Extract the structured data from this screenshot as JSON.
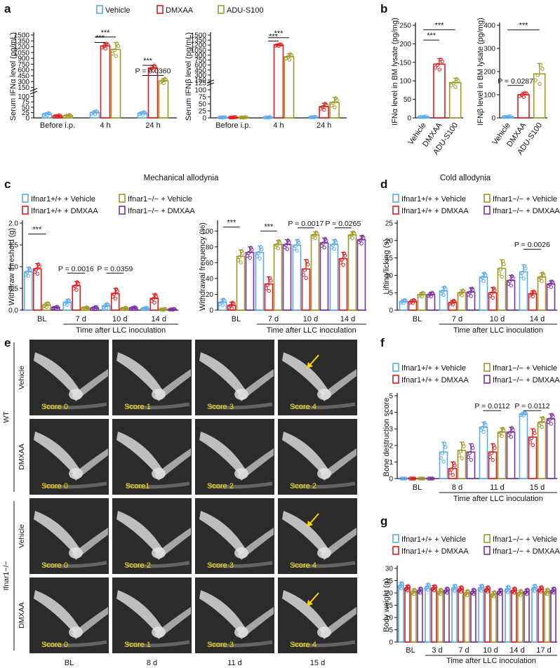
{
  "colors": {
    "vehicle": "#5aaaf0",
    "dmxaa": "#e31a1c",
    "adu": "#9c9a24",
    "ko_vehicle": "#9c9a24",
    "ko_dmxaa": "#7b2ea0",
    "arrow": "#ffd400"
  },
  "panel_labels": [
    "a",
    "b",
    "c",
    "d",
    "e",
    "f",
    "g"
  ],
  "legend_a": [
    "Vehicle",
    "DMXAA",
    "ADU-S100"
  ],
  "legend_c": [
    "Ifnar1+/+ + Vehicle",
    "Ifnar1−/− + Vehicle",
    "Ifnar1+/+ + DMXAA",
    "Ifnar1−/− + DMXAA"
  ],
  "section_titles": {
    "c": "Mechanical allodynia",
    "d": "Cold allodynia"
  },
  "xray": {
    "columns": [
      "BL",
      "8 d",
      "11 d",
      "15 d"
    ],
    "xlabel": "Time after LLC inoculation",
    "group_labels": [
      "WT",
      "Ifnar1−/−"
    ],
    "row_labels": [
      "Vehicle",
      "DMXAA",
      "Vehicle",
      "DMXAA"
    ],
    "scores": [
      [
        "Score 0",
        "Score 1",
        "Score 3",
        "Score 4"
      ],
      [
        "Score 0",
        "Score1",
        "Score 2",
        "Score 2"
      ],
      [
        "Score 0",
        "Score 2",
        "Score 3",
        "Score 4"
      ],
      [
        "Score 0",
        "Score 1",
        "Score 3",
        "Score 4"
      ]
    ],
    "arrow_cells": [
      [
        0,
        3
      ],
      [
        2,
        3
      ],
      [
        3,
        3
      ]
    ]
  },
  "chart_data": [
    {
      "id": "a1",
      "type": "bar",
      "ylabel": "Serum IFNα level (pg/mL)",
      "categories": [
        "Before i.p.",
        "4 h",
        "24 h"
      ],
      "yticks": [
        "0",
        "25",
        "50",
        "75",
        "100",
        "150",
        "300",
        "450",
        "600",
        "750",
        "900",
        "1050",
        "1200",
        "1350",
        "1500"
      ],
      "axis_break": {
        "lower": [
          0,
          125
        ],
        "upper": [
          125,
          1500
        ]
      },
      "series": [
        {
          "name": "Vehicle",
          "values": [
            18,
            25,
            22
          ],
          "errors": [
            6,
            8,
            6
          ]
        },
        {
          "name": "DMXAA",
          "values": [
            9,
            1220,
            650
          ],
          "errors": [
            4,
            70,
            70
          ]
        },
        {
          "name": "ADU-S100",
          "values": [
            10,
            1130,
            320
          ],
          "errors": [
            5,
            180,
            60
          ]
        }
      ],
      "annotations": [
        {
          "text": "***",
          "category": "4 h",
          "pair": [
            "Vehicle",
            "ADU-S100"
          ],
          "level": 1450
        },
        {
          "text": "***",
          "category": "4 h",
          "pair": [
            "Vehicle",
            "DMXAA"
          ],
          "level": 1310
        },
        {
          "text": "P = 0.0360",
          "category": "24 h",
          "pair": [
            "Vehicle",
            "ADU-S100"
          ],
          "level": 460
        },
        {
          "text": "***",
          "category": "24 h",
          "pair": [
            "Vehicle",
            "DMXAA"
          ],
          "level": 720
        }
      ]
    },
    {
      "id": "a2",
      "type": "bar",
      "ylabel": "Serum IFNβ level (pg/mL)",
      "categories": [
        "Before i.p.",
        "4 h",
        "24 h"
      ],
      "yticks": [
        "0",
        "25",
        "50",
        "75",
        "100",
        "125",
        "150",
        "300",
        "450",
        "600",
        "750",
        "900",
        "1050",
        "1200",
        "1350",
        "1500"
      ],
      "axis_break": {
        "lower": [
          0,
          125
        ],
        "upper": [
          150,
          1500
        ]
      },
      "series": [
        {
          "name": "Vehicle",
          "values": [
            2,
            2,
            3
          ],
          "errors": [
            1,
            1,
            1
          ]
        },
        {
          "name": "DMXAA",
          "values": [
            2,
            1200,
            40
          ],
          "errors": [
            1,
            30,
            12
          ]
        },
        {
          "name": "ADU-S100",
          "values": [
            2,
            850,
            55
          ],
          "errors": [
            1,
            90,
            18
          ]
        }
      ],
      "annotations": [
        {
          "text": "***",
          "category": "4 h",
          "pair": [
            "Vehicle",
            "ADU-S100"
          ],
          "level": 1420
        },
        {
          "text": "***",
          "category": "4 h",
          "pair": [
            "Vehicle",
            "DMXAA"
          ],
          "level": 1320
        }
      ]
    },
    {
      "id": "b1",
      "type": "bar",
      "ylabel": "IFNα level  in BM lysate (pg/mg)",
      "categories": [
        "Vehicle",
        "DMXAA",
        "ADU-S100"
      ],
      "yticks": [
        "0",
        "50",
        "100",
        "150",
        "200",
        "250"
      ],
      "ylim": [
        0,
        250
      ],
      "series": [
        {
          "name": "",
          "values": [
            3,
            145,
            95
          ],
          "errors": [
            1,
            15,
            12
          ]
        }
      ],
      "annotations": [
        {
          "text": "***",
          "pair": [
            "Vehicle",
            "ADU-S100"
          ],
          "level": 238
        },
        {
          "text": "***",
          "pair": [
            "Vehicle",
            "DMXAA"
          ],
          "level": 210
        }
      ]
    },
    {
      "id": "b2",
      "type": "bar",
      "ylabel": "IFNβ level  in BM lysate (pg/mg)",
      "categories": [
        "Vehicle",
        "DMXAA",
        "ADU-S100"
      ],
      "yticks": [
        "0",
        "100",
        "200",
        "300",
        "400"
      ],
      "ylim": [
        0,
        400
      ],
      "series": [
        {
          "name": "",
          "values": [
            5,
            100,
            190
          ],
          "errors": [
            2,
            10,
            45
          ]
        }
      ],
      "annotations": [
        {
          "text": "***",
          "pair": [
            "Vehicle",
            "ADU-S100"
          ],
          "level": 380
        },
        {
          "text": "P = 0.0287",
          "pair": [
            "Vehicle",
            "DMXAA"
          ],
          "level": 140
        }
      ]
    },
    {
      "id": "c1",
      "type": "bar",
      "ylabel": "Withdraw threshold (g)",
      "xlabel": "Time after LLC inoculation",
      "categories": [
        "BL",
        "7 d",
        "10 d",
        "14 d"
      ],
      "yticks": [
        "0.0",
        "0.5",
        "1.0",
        "1.5",
        "2.0"
      ],
      "ylim": [
        0,
        2.0
      ],
      "series": [
        {
          "name": "Ifnar1+/+ + Vehicle",
          "values": [
            0.88,
            0.18,
            0.1,
            0.04
          ],
          "errors": [
            0.1,
            0.06,
            0.05,
            0.02
          ]
        },
        {
          "name": "Ifnar1+/+ + DMXAA",
          "values": [
            0.95,
            0.56,
            0.38,
            0.27
          ],
          "errors": [
            0.12,
            0.1,
            0.12,
            0.1
          ]
        },
        {
          "name": "Ifnar1−/− + Vehicle",
          "values": [
            0.12,
            0.05,
            0.04,
            0.02
          ],
          "errors": [
            0.05,
            0.02,
            0.02,
            0.01
          ]
        },
        {
          "name": "Ifnar1−/− + DMXAA",
          "values": [
            0.06,
            0.05,
            0.05,
            0.02
          ],
          "errors": [
            0.02,
            0.03,
            0.02,
            0.01
          ]
        }
      ],
      "annotations": [
        {
          "text": "***",
          "category": "BL",
          "level": 1.75
        },
        {
          "text": "P = 0.0016",
          "category": "7 d",
          "level": 0.85
        },
        {
          "text": "P = 0.0359",
          "category": "10 d",
          "level": 0.85
        }
      ]
    },
    {
      "id": "c2",
      "type": "bar",
      "ylabel": "Withdrawal frequency (%)",
      "xlabel": "Time after LLC inoculation",
      "categories": [
        "BL",
        "7 d",
        "10 d",
        "14 d"
      ],
      "yticks": [
        "0",
        "20",
        "40",
        "60",
        "80",
        "100"
      ],
      "ylim": [
        0,
        110
      ],
      "series": [
        {
          "name": "Ifnar1+/+ + Vehicle",
          "values": [
            10,
            73,
            82,
            83
          ],
          "errors": [
            4,
            8,
            7,
            6
          ]
        },
        {
          "name": "Ifnar1+/+ + DMXAA",
          "values": [
            6,
            33,
            52,
            65
          ],
          "errors": [
            4,
            9,
            12,
            8
          ]
        },
        {
          "name": "Ifnar1−/− + Vehicle",
          "values": [
            68,
            83,
            95,
            95
          ],
          "errors": [
            8,
            5,
            4,
            4
          ]
        },
        {
          "name": "Ifnar1−/− + DMXAA",
          "values": [
            73,
            83,
            85,
            89
          ],
          "errors": [
            7,
            6,
            6,
            5
          ]
        }
      ],
      "annotations": [
        {
          "text": "***",
          "category": "BL",
          "level": 105
        },
        {
          "text": "***",
          "category": "7 d",
          "level": 100
        },
        {
          "text": "P = 0.0017",
          "category": "10 d",
          "level": 104
        },
        {
          "text": "P = 0.0265",
          "category": "14 d",
          "level": 104
        }
      ]
    },
    {
      "id": "d",
      "type": "bar",
      "ylabel": "Lifting/licking (s)",
      "xlabel": "Time after LLC inoculation",
      "categories": [
        "BL",
        "7 d",
        "10 d",
        "14 d"
      ],
      "yticks": [
        "0",
        "5",
        "10",
        "15",
        "20",
        "25"
      ],
      "ylim": [
        0,
        25
      ],
      "series": [
        {
          "name": "Ifnar1+/+ + Vehicle",
          "values": [
            2.5,
            5.5,
            9.5,
            11
          ],
          "errors": [
            0.5,
            1.2,
            1.2,
            2
          ]
        },
        {
          "name": "Ifnar1+/+ + DMXAA",
          "values": [
            2.5,
            2.2,
            5,
            4.7
          ],
          "errors": [
            0.5,
            0.6,
            1.5,
            0.8
          ]
        },
        {
          "name": "Ifnar1−/− + Vehicle",
          "values": [
            4.5,
            5,
            12,
            9.5
          ],
          "errors": [
            0.6,
            0.8,
            2.5,
            1.2
          ]
        },
        {
          "name": "Ifnar1−/− + DMXAA",
          "values": [
            4.5,
            5.2,
            8.5,
            7.5
          ],
          "errors": [
            0.6,
            1.2,
            1.5,
            0.9
          ]
        }
      ],
      "annotations": [
        {
          "text": "P = 0.0026",
          "category": "14 d",
          "level": 17.5
        }
      ]
    },
    {
      "id": "f",
      "type": "bar",
      "ylabel": "Bone destruction score",
      "xlabel": "Time after LLC inoculation",
      "categories": [
        "BL",
        "8 d",
        "11 d",
        "15 d"
      ],
      "yticks": [
        "0",
        "1",
        "2",
        "3",
        "4",
        "5"
      ],
      "ylim": [
        0,
        5
      ],
      "series": [
        {
          "name": "Ifnar1+/+ + Vehicle",
          "values": [
            0,
            1.6,
            3.1,
            3.9
          ],
          "errors": [
            0,
            0.6,
            0.3,
            0.1
          ]
        },
        {
          "name": "Ifnar1+/+ + DMXAA",
          "values": [
            0,
            0.6,
            1.6,
            2.5
          ],
          "errors": [
            0,
            0.4,
            0.5,
            0.5
          ]
        },
        {
          "name": "Ifnar1−/− + Vehicle",
          "values": [
            0,
            1.7,
            2.8,
            3.4
          ],
          "errors": [
            0,
            0.5,
            0.25,
            0.3
          ]
        },
        {
          "name": "Ifnar1−/− + DMXAA",
          "values": [
            0,
            1.6,
            2.8,
            3.6
          ],
          "errors": [
            0,
            0.5,
            0.3,
            0.3
          ]
        }
      ],
      "annotations": [
        {
          "text": "P = 0.0112",
          "category": "11 d",
          "level": 4.1
        },
        {
          "text": "P = 0.0112",
          "category": "15 d",
          "level": 4.1
        }
      ]
    },
    {
      "id": "g",
      "type": "bar",
      "ylabel": "Body weight (g)",
      "xlabel": "Time after LLC inoculation",
      "categories": [
        "BL",
        "3 d",
        "7 d",
        "10 d",
        "14 d",
        "17 d"
      ],
      "yticks": [
        "0",
        "5",
        "10",
        "15",
        "20",
        "25",
        "30"
      ],
      "ylim": [
        0,
        30
      ],
      "series": [
        {
          "name": "Ifnar1+/+ + Vehicle",
          "values": [
            23,
            22.5,
            22,
            22,
            21.5,
            22
          ],
          "errors": [
            1.2,
            1.2,
            1.2,
            1.2,
            1.2,
            1.2
          ]
        },
        {
          "name": "Ifnar1+/+ + DMXAA",
          "values": [
            22,
            22,
            21.5,
            21.5,
            21,
            21.5
          ],
          "errors": [
            1,
            1,
            1,
            1,
            1,
            1
          ]
        },
        {
          "name": "Ifnar1−/− + Vehicle",
          "values": [
            20.5,
            20.5,
            20,
            19.5,
            20,
            20.5
          ],
          "errors": [
            1,
            1,
            1,
            1,
            1,
            1
          ]
        },
        {
          "name": "Ifnar1−/− + DMXAA",
          "values": [
            21,
            21,
            20.5,
            20.5,
            20.5,
            21
          ],
          "errors": [
            1,
            1,
            1,
            1,
            1,
            1
          ]
        }
      ],
      "annotations": []
    }
  ]
}
